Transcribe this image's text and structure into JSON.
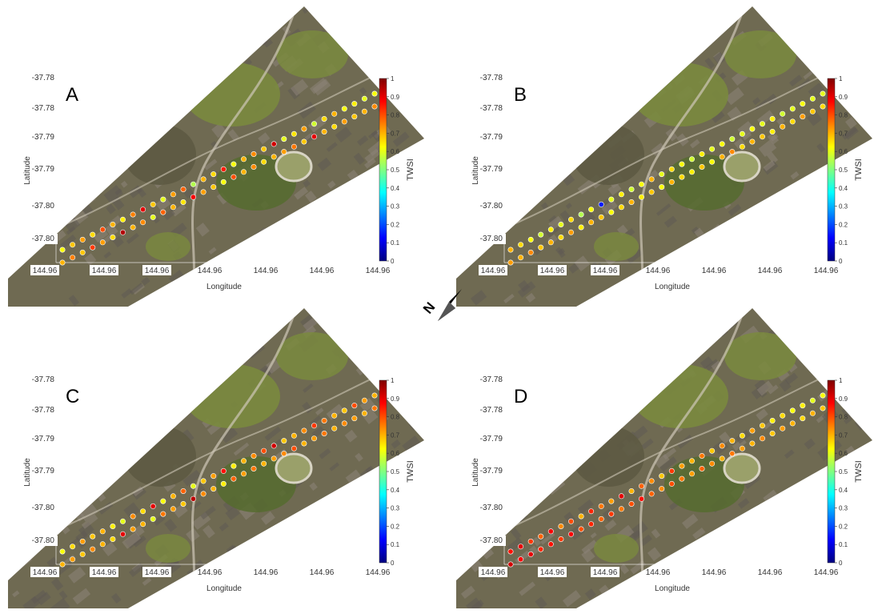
{
  "figure": {
    "colors": {
      "map_bg": "#6f6a52",
      "park": "#7a8a3e",
      "park_dark": "#566b2f",
      "urban": "#8c8478",
      "urban_dark": "#5f5a53",
      "road": "#cfc8b8",
      "stadium": "#9aa06a",
      "colormap": [
        "#00007f",
        "#0000ff",
        "#0080ff",
        "#00ffff",
        "#80ff80",
        "#ffff00",
        "#ff8000",
        "#ff0000",
        "#7f0000"
      ]
    },
    "north_arrow_icon": "north-arrow-icon",
    "panels": [
      {
        "id": "A",
        "label": "A",
        "ylabel": "Latitude",
        "xlabel": "Longitude",
        "y_ticks": [
          "-37.78",
          "-37.78",
          "-37.79",
          "-37.79",
          "-37.80",
          "-37.80"
        ],
        "x_ticks": [
          "144.96",
          "144.96",
          "144.96",
          "144.96",
          "144.96",
          "144.96",
          "144.96"
        ],
        "colorbar_label": "TWSI",
        "colorbar_ticks": [
          "1",
          "0.9",
          "0.8",
          "0.7",
          "0.6",
          "0.5",
          "0.4",
          "0.3",
          "0.2",
          "0.1",
          "0"
        ],
        "colorbar_range": [
          0,
          1
        ],
        "upper_track_values": [
          0.62,
          0.68,
          0.72,
          0.66,
          0.8,
          0.7,
          0.64,
          0.75,
          0.9,
          0.68,
          0.6,
          0.72,
          0.78,
          0.55,
          0.7,
          0.66,
          0.85,
          0.62,
          0.7,
          0.74,
          0.68,
          0.92,
          0.6,
          0.65,
          0.72,
          0.58,
          0.66,
          0.7,
          0.62,
          0.64,
          0.6,
          0.62
        ],
        "lower_track_values": [
          0.7,
          0.75,
          0.68,
          0.82,
          0.72,
          0.66,
          0.95,
          0.7,
          0.74,
          0.6,
          0.78,
          0.7,
          0.65,
          0.88,
          0.72,
          0.68,
          0.62,
          0.8,
          0.7,
          0.74,
          0.66,
          0.7,
          0.72,
          0.76,
          0.68,
          0.9,
          0.7,
          0.66,
          0.72,
          0.68,
          0.7,
          0.74
        ]
      },
      {
        "id": "B",
        "label": "B",
        "ylabel": "Latitude",
        "xlabel": "Longitude",
        "y_ticks": [
          "-37.78",
          "-37.78",
          "-37.79",
          "-37.79",
          "-37.80",
          "-37.80"
        ],
        "x_ticks": [
          "144.96",
          "144.96",
          "144.96",
          "144.96",
          "144.96",
          "144.96",
          "144.96"
        ],
        "colorbar_label": "TWSI",
        "colorbar_ticks": [
          "1",
          "0.9",
          "0.8",
          "0.7",
          "0.6",
          "0.5",
          "0.4",
          "0.3",
          "0.2",
          "0.1",
          "0"
        ],
        "colorbar_range": [
          0,
          1
        ],
        "upper_track_values": [
          0.7,
          0.66,
          0.62,
          0.58,
          0.64,
          0.6,
          0.66,
          0.55,
          0.62,
          0.15,
          0.6,
          0.64,
          0.58,
          0.62,
          0.7,
          0.6,
          0.66,
          0.62,
          0.58,
          0.64,
          0.6,
          0.62,
          0.58,
          0.6,
          0.62,
          0.6,
          0.64,
          0.58,
          0.6,
          0.62,
          0.6,
          0.6
        ],
        "lower_track_values": [
          0.72,
          0.7,
          0.74,
          0.68,
          0.7,
          0.66,
          0.72,
          0.64,
          0.7,
          0.68,
          0.62,
          0.66,
          0.7,
          0.64,
          0.68,
          0.62,
          0.7,
          0.66,
          0.64,
          0.68,
          0.62,
          0.7,
          0.74,
          0.66,
          0.7,
          0.68,
          0.64,
          0.7,
          0.66,
          0.72,
          0.68,
          0.66
        ]
      },
      {
        "id": "C",
        "label": "C",
        "ylabel": "Latitude",
        "xlabel": "Longitude",
        "y_ticks": [
          "-37.78",
          "-37.78",
          "-37.79",
          "-37.79",
          "-37.80",
          "-37.80"
        ],
        "x_ticks": [
          "144.96",
          "144.96",
          "144.96",
          "144.96",
          "144.96",
          "144.96",
          "144.96"
        ],
        "colorbar_label": "TWSI",
        "colorbar_ticks": [
          "1",
          "0.9",
          "0.8",
          "0.7",
          "0.6",
          "0.5",
          "0.4",
          "0.3",
          "0.2",
          "0.1",
          "0"
        ],
        "colorbar_range": [
          0,
          1
        ],
        "upper_track_values": [
          0.62,
          0.66,
          0.72,
          0.68,
          0.7,
          0.64,
          0.6,
          0.74,
          0.66,
          0.9,
          0.62,
          0.7,
          0.78,
          0.6,
          0.68,
          0.72,
          0.86,
          0.64,
          0.7,
          0.74,
          0.8,
          0.92,
          0.68,
          0.7,
          0.74,
          0.82,
          0.76,
          0.7,
          0.68,
          0.8,
          0.72,
          0.7
        ],
        "lower_track_values": [
          0.7,
          0.72,
          0.68,
          0.74,
          0.7,
          0.66,
          0.9,
          0.72,
          0.7,
          0.6,
          0.76,
          0.72,
          0.68,
          0.94,
          0.74,
          0.7,
          0.64,
          0.78,
          0.72,
          0.76,
          0.7,
          0.72,
          0.74,
          0.8,
          0.7,
          0.72,
          0.76,
          0.7,
          0.74,
          0.72,
          0.7,
          0.76
        ]
      },
      {
        "id": "D",
        "label": "D",
        "ylabel": "Latitude",
        "xlabel": "Longitude",
        "y_ticks": [
          "-37.78",
          "-37.78",
          "-37.79",
          "-37.79",
          "-37.80",
          "-37.80"
        ],
        "x_ticks": [
          "144.96",
          "144.96",
          "144.96",
          "144.96",
          "144.96",
          "144.96",
          "144.96"
        ],
        "colorbar_label": "TWSI",
        "colorbar_ticks": [
          "1",
          "0.9",
          "0.8",
          "0.7",
          "0.6",
          "0.5",
          "0.4",
          "0.3",
          "0.2",
          "0.1",
          "0"
        ],
        "colorbar_range": [
          0,
          1
        ],
        "upper_track_values": [
          0.86,
          0.9,
          0.82,
          0.78,
          0.88,
          0.74,
          0.8,
          0.7,
          0.84,
          0.76,
          0.72,
          0.9,
          0.7,
          0.78,
          0.74,
          0.68,
          0.82,
          0.72,
          0.7,
          0.76,
          0.68,
          0.74,
          0.7,
          0.66,
          0.72,
          0.68,
          0.64,
          0.66,
          0.62,
          0.64,
          0.6,
          0.62
        ],
        "lower_track_values": [
          0.92,
          0.88,
          0.9,
          0.84,
          0.86,
          0.82,
          0.88,
          0.8,
          0.84,
          0.78,
          0.82,
          0.76,
          0.8,
          0.86,
          0.78,
          0.74,
          0.8,
          0.76,
          0.72,
          0.78,
          0.74,
          0.7,
          0.76,
          0.72,
          0.7,
          0.74,
          0.68,
          0.72,
          0.7,
          0.66,
          0.7,
          0.68
        ]
      }
    ]
  }
}
